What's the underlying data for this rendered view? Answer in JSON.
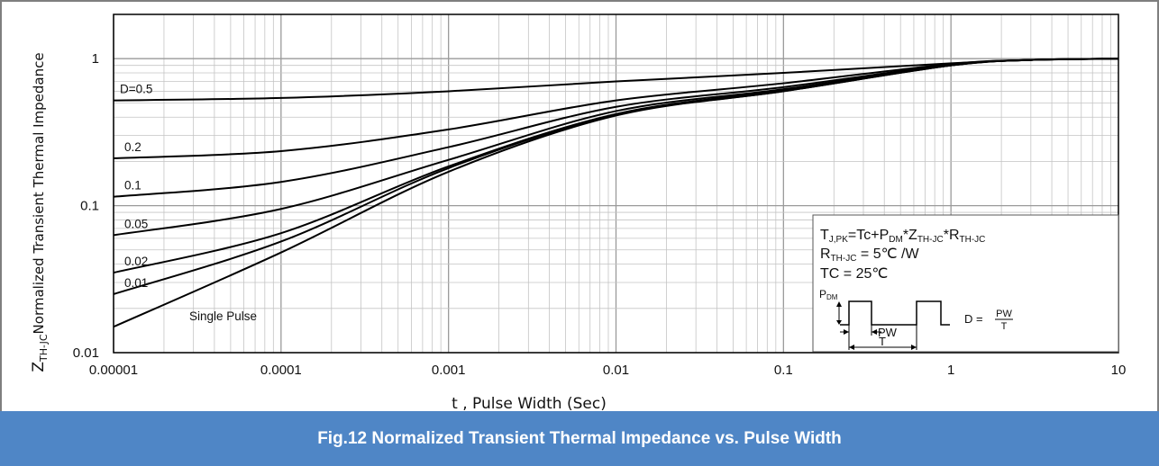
{
  "chart_data": {
    "type": "line",
    "xscale": "log",
    "yscale": "log",
    "xlim": [
      1e-05,
      10
    ],
    "ylim": [
      0.01,
      2
    ],
    "grid": true,
    "xlabel": "t , Pulse Width (Sec)",
    "ylabel": {
      "prefix": "Z",
      "prefix_sub": "TH-JC",
      "text": "Normalized  Transient  Thermal  Impedance"
    },
    "x_ticks": [
      {
        "value": 1e-05,
        "label": "0.00001"
      },
      {
        "value": 0.0001,
        "label": "0.0001"
      },
      {
        "value": 0.001,
        "label": "0.001"
      },
      {
        "value": 0.01,
        "label": "0.01"
      },
      {
        "value": 0.1,
        "label": "0.1"
      },
      {
        "value": 1,
        "label": "1"
      },
      {
        "value": 10,
        "label": "10"
      }
    ],
    "y_ticks": [
      {
        "value": 0.01,
        "label": "0.01"
      },
      {
        "value": 0.1,
        "label": "0.1"
      },
      {
        "value": 1,
        "label": "1"
      }
    ],
    "series": [
      {
        "name": "D=0.5",
        "x": [
          1e-05,
          0.0001,
          0.001,
          0.01,
          0.1,
          1,
          3,
          10
        ],
        "y": [
          0.52,
          0.54,
          0.6,
          0.7,
          0.8,
          0.93,
          0.98,
          1.0
        ]
      },
      {
        "name": "0.2",
        "x": [
          1e-05,
          0.0001,
          0.001,
          0.01,
          0.1,
          1,
          3,
          10
        ],
        "y": [
          0.21,
          0.235,
          0.33,
          0.52,
          0.68,
          0.92,
          0.98,
          1.0
        ]
      },
      {
        "name": "0.1",
        "x": [
          1e-05,
          0.0001,
          0.001,
          0.01,
          0.1,
          1,
          3,
          10
        ],
        "y": [
          0.115,
          0.145,
          0.25,
          0.47,
          0.64,
          0.91,
          0.98,
          1.0
        ]
      },
      {
        "name": "0.05",
        "x": [
          1e-05,
          0.0001,
          0.001,
          0.01,
          0.1,
          1,
          3,
          10
        ],
        "y": [
          0.063,
          0.095,
          0.205,
          0.44,
          0.62,
          0.9,
          0.98,
          1.0
        ]
      },
      {
        "name": "0.02",
        "x": [
          1e-05,
          0.0001,
          0.001,
          0.01,
          0.1,
          1,
          3,
          10
        ],
        "y": [
          0.035,
          0.065,
          0.185,
          0.42,
          0.61,
          0.9,
          0.98,
          1.0
        ]
      },
      {
        "name": "0.01",
        "x": [
          1e-05,
          0.0001,
          0.001,
          0.01,
          0.1,
          1,
          3,
          10
        ],
        "y": [
          0.025,
          0.057,
          0.18,
          0.415,
          0.6,
          0.9,
          0.98,
          1.0
        ]
      },
      {
        "name": "Single Pulse",
        "x": [
          1e-05,
          0.0001,
          0.001,
          0.01,
          0.1,
          1,
          3,
          10
        ],
        "y": [
          0.015,
          0.048,
          0.17,
          0.41,
          0.6,
          0.9,
          0.98,
          1.0
        ]
      }
    ],
    "annotations": {
      "formula": {
        "t": "T",
        "t_sub": "J,PK",
        "eq1": "=Tc+P",
        "p_sub": "DM",
        "star1": "*Z",
        "z_sub": "TH-JC",
        "star2": "*R",
        "r_sub": "TH-JC"
      },
      "rth": {
        "r": "R",
        "r_sub": "TH-JC",
        "value": " = 5℃ /W"
      },
      "tc": "TC = 25℃",
      "pulse": {
        "p": "P",
        "p_sub": "DM",
        "pw": "PW",
        "t": "T",
        "duty_lhs": "D = ",
        "duty_num": "PW",
        "duty_den": "T"
      }
    }
  },
  "caption": "Fig.12 Normalized Transient Thermal Impedance vs. Pulse Width"
}
